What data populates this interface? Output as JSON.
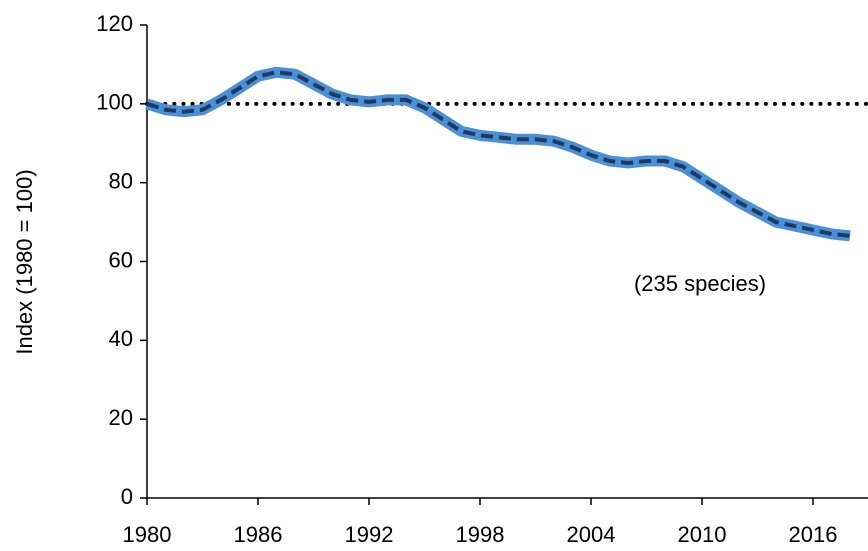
{
  "chart_data": {
    "type": "line",
    "ylabel": "Index (1980 = 100)",
    "annotation": "(235 species)",
    "x": [
      1980,
      1981,
      1982,
      1983,
      1984,
      1985,
      1986,
      1987,
      1988,
      1989,
      1990,
      1991,
      1992,
      1993,
      1994,
      1995,
      1996,
      1997,
      1998,
      1999,
      2000,
      2001,
      2002,
      2003,
      2004,
      2005,
      2006,
      2007,
      2008,
      2009,
      2010,
      2011,
      2012,
      2013,
      2014,
      2015,
      2016,
      2017,
      2018
    ],
    "series": [
      {
        "color": "#4a90d9",
        "dash_color": "#1f3a5c",
        "values": [
          100,
          98.5,
          98,
          98.5,
          101,
          104,
          107,
          108,
          107.5,
          105,
          102.5,
          101,
          100.5,
          101,
          101,
          99,
          96,
          93,
          92,
          91.5,
          91,
          91,
          90.5,
          89,
          87,
          85.5,
          85,
          85.5,
          85.5,
          84,
          81,
          78,
          75,
          72.5,
          70,
          69,
          68,
          67,
          66.5
        ]
      }
    ],
    "reference_line": 100,
    "xlim": [
      1980,
      2019
    ],
    "xticks": [
      1980,
      1986,
      1992,
      1998,
      2004,
      2010,
      2016
    ],
    "ylim": [
      0,
      120
    ],
    "yticks": [
      0,
      20,
      40,
      60,
      80,
      100,
      120
    ]
  }
}
